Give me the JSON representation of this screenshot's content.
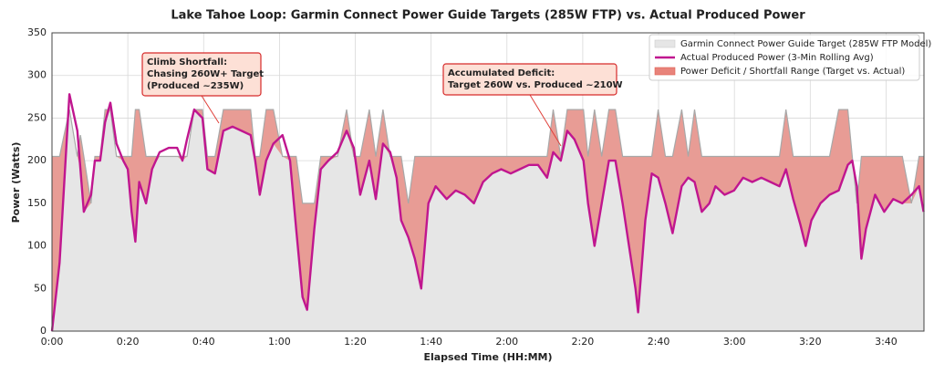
{
  "chart_data": {
    "type": "line",
    "title": "Lake Tahoe Loop: Garmin Connect Power Guide Targets (285W FTP) vs. Actual Produced Power",
    "x_label": "Elapsed Time (HH:MM)",
    "y_label": "Power (Watts)",
    "xlim": [
      0,
      230
    ],
    "ylim": [
      0,
      350
    ],
    "xticks": [
      {
        "value": 0,
        "label": "0:00"
      },
      {
        "value": 20,
        "label": "0:20"
      },
      {
        "value": 40,
        "label": "0:40"
      },
      {
        "value": 60,
        "label": "1:00"
      },
      {
        "value": 80,
        "label": "1:20"
      },
      {
        "value": 100,
        "label": "1:40"
      },
      {
        "value": 120,
        "label": "2:00"
      },
      {
        "value": 140,
        "label": "2:20"
      },
      {
        "value": 160,
        "label": "2:40"
      },
      {
        "value": 180,
        "label": "3:00"
      },
      {
        "value": 200,
        "label": "3:20"
      },
      {
        "value": 220,
        "label": "3:40"
      }
    ],
    "yticks": [
      0,
      50,
      100,
      150,
      200,
      250,
      300,
      350
    ],
    "grid": true,
    "legend": "upper right",
    "x": [
      0,
      2,
      4.6,
      6.7,
      7.5,
      8.4,
      10.3,
      11.3,
      12.7,
      14,
      15.4,
      17,
      18.8,
      20,
      21,
      22,
      23,
      24.8,
      26.4,
      28.4,
      30.8,
      33,
      34.4,
      35.6,
      37.5,
      39.7,
      41,
      43,
      45.2,
      47.6,
      50,
      52.4,
      53.6,
      54.8,
      56.5,
      58.4,
      60.8,
      62.8,
      64.4,
      66.1,
      67.3,
      69.2,
      70.9,
      72.9,
      75.3,
      77.7,
      79.6,
      81.3,
      83.7,
      85.4,
      87.3,
      89.2,
      90.9,
      92.1,
      94,
      95.7,
      97.4,
      99.3,
      101.2,
      104.1,
      106.5,
      108.9,
      111.3,
      113.7,
      116.1,
      118.5,
      121,
      123.4,
      125.8,
      128.2,
      130.6,
      132.2,
      134.2,
      135.9,
      137.8,
      140.2,
      141.4,
      143.1,
      145,
      146.9,
      148.6,
      150.5,
      152.2,
      153.9,
      154.6,
      156.5,
      158.2,
      159.9,
      161.8,
      163.7,
      166.1,
      167.8,
      169.5,
      171.4,
      173.4,
      175,
      177.4,
      179.9,
      182.3,
      184.7,
      187.1,
      189.5,
      191.9,
      193.6,
      195.5,
      197.4,
      198.8,
      200.3,
      202.7,
      205.1,
      207.5,
      209.9,
      211.1,
      212.3,
      213.5,
      214.7,
      217.1,
      219.5,
      221.9,
      224.3,
      226.7,
      228.7,
      229.9
    ],
    "series": [
      {
        "name": "Garmin Connect Power Guide Target (285W FTP Model)",
        "color": "#e6e6e6",
        "line_color": "#a8a8a8",
        "values": [
          205,
          205,
          260,
          205,
          230,
          205,
          150,
          205,
          205,
          260,
          260,
          205,
          205,
          205,
          205,
          260,
          260,
          205,
          205,
          205,
          205,
          205,
          205,
          205,
          260,
          260,
          205,
          205,
          260,
          260,
          260,
          260,
          205,
          205,
          260,
          260,
          205,
          205,
          205,
          150,
          150,
          150,
          205,
          205,
          205,
          260,
          205,
          205,
          260,
          205,
          260,
          205,
          205,
          205,
          150,
          205,
          205,
          205,
          205,
          205,
          205,
          205,
          205,
          205,
          205,
          205,
          205,
          205,
          205,
          205,
          205,
          260,
          205,
          260,
          260,
          260,
          205,
          260,
          205,
          260,
          260,
          205,
          205,
          205,
          205,
          205,
          205,
          260,
          205,
          205,
          260,
          205,
          260,
          205,
          205,
          205,
          205,
          205,
          205,
          205,
          205,
          205,
          205,
          260,
          205,
          205,
          205,
          205,
          205,
          205,
          260,
          260,
          205,
          150,
          205,
          205,
          205,
          205,
          205,
          205,
          150,
          205,
          205
        ]
      },
      {
        "name": "Actual Produced Power (3-Min Rolling Avg)",
        "color": "#c0168f",
        "values": [
          0,
          80,
          278,
          235,
          190,
          140,
          160,
          200,
          200,
          245,
          268,
          220,
          200,
          190,
          140,
          105,
          175,
          150,
          190,
          210,
          215,
          215,
          200,
          225,
          260,
          250,
          190,
          185,
          235,
          240,
          235,
          230,
          200,
          160,
          200,
          220,
          230,
          200,
          120,
          40,
          25,
          120,
          190,
          200,
          210,
          235,
          215,
          160,
          200,
          155,
          220,
          210,
          180,
          130,
          110,
          85,
          50,
          150,
          170,
          155,
          165,
          160,
          150,
          175,
          185,
          190,
          185,
          190,
          195,
          195,
          180,
          210,
          200,
          235,
          225,
          200,
          150,
          100,
          150,
          200,
          200,
          150,
          100,
          50,
          22,
          130,
          185,
          180,
          150,
          115,
          170,
          180,
          175,
          140,
          150,
          170,
          160,
          165,
          180,
          175,
          180,
          175,
          170,
          190,
          155,
          125,
          100,
          130,
          150,
          160,
          165,
          195,
          200,
          170,
          85,
          120,
          160,
          140,
          155,
          150,
          160,
          170,
          140
        ]
      }
    ],
    "deficit_fill": {
      "name": "Power Deficit / Shortfall Range (Target vs. Actual)",
      "color": "#e8837a"
    },
    "annotations": [
      {
        "lines": [
          "Climb Shortfall:",
          "Chasing 260W+ Target",
          "(Produced ~235W)"
        ]
      },
      {
        "lines": [
          "Accumulated Deficit:",
          "Target 260W vs. Produced ~210W"
        ]
      }
    ]
  }
}
